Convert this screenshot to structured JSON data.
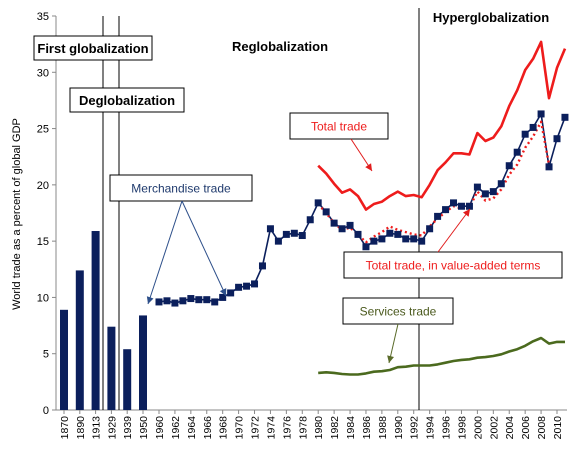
{
  "chart_data": {
    "type": "bar",
    "title": "",
    "ylabel": "World trade as a percent of global GDP",
    "xlabel": "",
    "ylim": [
      0,
      35
    ],
    "yticks": [
      0,
      5,
      10,
      15,
      20,
      25,
      30,
      35
    ],
    "grid": false,
    "colors": {
      "merchandise": "#0b1f5c",
      "total": "#ee1c1c",
      "value_added": "#ee1c1c",
      "services": "#4b6a1e",
      "arrow_blue": "#2d4f8a",
      "arrow_red": "#e11d1d",
      "arrow_green": "#5a6b2a"
    },
    "bar_categories": [
      "1870",
      "1890",
      "1913",
      "1929",
      "1939",
      "1950"
    ],
    "bars": [
      {
        "x": "1870",
        "value": 8.9
      },
      {
        "x": "1890",
        "value": 12.4
      },
      {
        "x": "1913",
        "value": 15.9
      },
      {
        "x": "1929",
        "value": 7.4
      },
      {
        "x": "1939",
        "value": 5.4
      },
      {
        "x": "1950",
        "value": 8.4
      }
    ],
    "year_ticks": [
      "1960",
      "1962",
      "1964",
      "1966",
      "1968",
      "1970",
      "1972",
      "1974",
      "1976",
      "1978",
      "1980",
      "1982",
      "1984",
      "1986",
      "1988",
      "1990",
      "1992",
      "1994",
      "1996",
      "1998",
      "2000",
      "2002",
      "2004",
      "2006",
      "2008",
      "2010"
    ],
    "series": [
      {
        "name": "Merchandise trade",
        "style": "line-markers",
        "points": [
          [
            1960,
            9.6
          ],
          [
            1961,
            9.7
          ],
          [
            1962,
            9.5
          ],
          [
            1963,
            9.7
          ],
          [
            1964,
            9.9
          ],
          [
            1965,
            9.8
          ],
          [
            1966,
            9.8
          ],
          [
            1967,
            9.6
          ],
          [
            1968,
            10.0
          ],
          [
            1969,
            10.4
          ],
          [
            1970,
            10.9
          ],
          [
            1971,
            11.0
          ],
          [
            1972,
            11.2
          ],
          [
            1973,
            12.8
          ],
          [
            1974,
            16.1
          ],
          [
            1975,
            15.0
          ],
          [
            1976,
            15.6
          ],
          [
            1977,
            15.7
          ],
          [
            1978,
            15.5
          ],
          [
            1979,
            16.9
          ],
          [
            1980,
            18.4
          ],
          [
            1981,
            17.6
          ],
          [
            1982,
            16.6
          ],
          [
            1983,
            16.1
          ],
          [
            1984,
            16.4
          ],
          [
            1985,
            15.6
          ],
          [
            1986,
            14.5
          ],
          [
            1987,
            15.0
          ],
          [
            1988,
            15.2
          ],
          [
            1989,
            15.7
          ],
          [
            1990,
            15.6
          ],
          [
            1991,
            15.2
          ],
          [
            1992,
            15.2
          ],
          [
            1993,
            15.0
          ],
          [
            1994,
            16.1
          ],
          [
            1995,
            17.2
          ],
          [
            1996,
            17.8
          ],
          [
            1997,
            18.4
          ],
          [
            1998,
            18.1
          ],
          [
            1999,
            18.1
          ],
          [
            2000,
            19.8
          ],
          [
            2001,
            19.2
          ],
          [
            2002,
            19.4
          ],
          [
            2003,
            20.1
          ],
          [
            2004,
            21.7
          ],
          [
            2005,
            22.9
          ],
          [
            2006,
            24.5
          ],
          [
            2007,
            25.1
          ],
          [
            2008,
            26.3
          ],
          [
            2009,
            21.6
          ],
          [
            2010,
            24.1
          ],
          [
            2011,
            26.0
          ]
        ]
      },
      {
        "name": "Total trade",
        "style": "line",
        "points": [
          [
            1980,
            21.7
          ],
          [
            1981,
            21.0
          ],
          [
            1982,
            20.1
          ],
          [
            1983,
            19.3
          ],
          [
            1984,
            19.6
          ],
          [
            1985,
            19.0
          ],
          [
            1986,
            17.8
          ],
          [
            1987,
            18.3
          ],
          [
            1988,
            18.5
          ],
          [
            1989,
            19.0
          ],
          [
            1990,
            19.4
          ],
          [
            1991,
            19.0
          ],
          [
            1992,
            19.1
          ],
          [
            1993,
            18.9
          ],
          [
            1994,
            20.0
          ],
          [
            1995,
            21.3
          ],
          [
            1996,
            22.0
          ],
          [
            1997,
            22.8
          ],
          [
            1998,
            22.8
          ],
          [
            1999,
            22.7
          ],
          [
            2000,
            24.6
          ],
          [
            2001,
            23.9
          ],
          [
            2002,
            24.2
          ],
          [
            2003,
            25.2
          ],
          [
            2004,
            27.0
          ],
          [
            2005,
            28.4
          ],
          [
            2006,
            30.2
          ],
          [
            2007,
            31.2
          ],
          [
            2008,
            32.7
          ],
          [
            2009,
            27.7
          ],
          [
            2010,
            30.4
          ],
          [
            2011,
            32.1
          ]
        ]
      },
      {
        "name": "Total trade, in value-added terms",
        "style": "dotted",
        "points": [
          [
            1980,
            18.3
          ],
          [
            1981,
            17.5
          ],
          [
            1982,
            16.6
          ],
          [
            1983,
            16.0
          ],
          [
            1984,
            16.2
          ],
          [
            1985,
            15.6
          ],
          [
            1986,
            14.9
          ],
          [
            1987,
            15.4
          ],
          [
            1988,
            15.8
          ],
          [
            1989,
            16.3
          ],
          [
            1990,
            16.0
          ],
          [
            1991,
            15.8
          ],
          [
            1992,
            15.6
          ],
          [
            1993,
            15.5
          ],
          [
            1994,
            16.3
          ],
          [
            1995,
            17.0
          ],
          [
            1996,
            17.6
          ],
          [
            1997,
            18.1
          ],
          [
            1998,
            17.9
          ],
          [
            1999,
            18.0
          ],
          [
            2000,
            19.4
          ],
          [
            2001,
            18.6
          ],
          [
            2002,
            18.8
          ],
          [
            2003,
            19.6
          ],
          [
            2004,
            20.9
          ],
          [
            2005,
            21.8
          ],
          [
            2006,
            23.3
          ],
          [
            2007,
            24.3
          ],
          [
            2008,
            25.6
          ],
          [
            2009,
            21.8
          ]
        ]
      },
      {
        "name": "Services trade",
        "style": "line",
        "points": [
          [
            1980,
            3.3
          ],
          [
            1981,
            3.35
          ],
          [
            1982,
            3.3
          ],
          [
            1983,
            3.2
          ],
          [
            1984,
            3.15
          ],
          [
            1985,
            3.15
          ],
          [
            1986,
            3.25
          ],
          [
            1987,
            3.4
          ],
          [
            1988,
            3.45
          ],
          [
            1989,
            3.55
          ],
          [
            1990,
            3.8
          ],
          [
            1991,
            3.85
          ],
          [
            1992,
            3.95
          ],
          [
            1993,
            3.95
          ],
          [
            1994,
            3.95
          ],
          [
            1995,
            4.05
          ],
          [
            1996,
            4.2
          ],
          [
            1997,
            4.35
          ],
          [
            1998,
            4.45
          ],
          [
            1999,
            4.5
          ],
          [
            2000,
            4.65
          ],
          [
            2001,
            4.7
          ],
          [
            2002,
            4.8
          ],
          [
            2003,
            4.95
          ],
          [
            2004,
            5.2
          ],
          [
            2005,
            5.4
          ],
          [
            2006,
            5.7
          ],
          [
            2007,
            6.1
          ],
          [
            2008,
            6.4
          ],
          [
            2009,
            5.9
          ],
          [
            2010,
            6.05
          ],
          [
            2011,
            6.05
          ]
        ]
      }
    ],
    "era_labels": {
      "first": "First globalization",
      "deglob": "Deglobalization",
      "reglob": "Reglobalization",
      "hyper": "Hyperglobalization"
    },
    "annotations": {
      "merchandise": "Merchandise trade",
      "total": "Total trade",
      "value_added": "Total trade, in value-added terms",
      "services": "Services trade"
    }
  }
}
